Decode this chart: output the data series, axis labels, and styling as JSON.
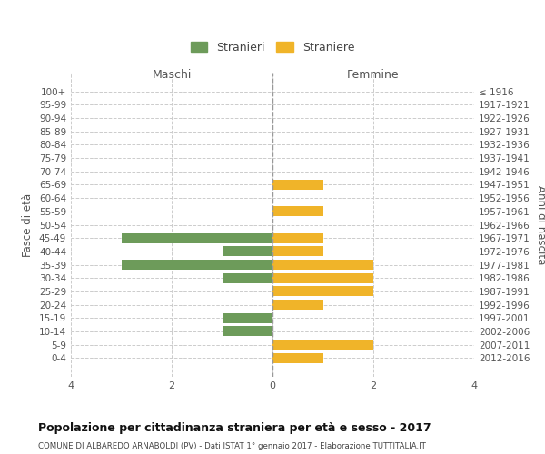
{
  "age_groups": [
    "100+",
    "95-99",
    "90-94",
    "85-89",
    "80-84",
    "75-79",
    "70-74",
    "65-69",
    "60-64",
    "55-59",
    "50-54",
    "45-49",
    "40-44",
    "35-39",
    "30-34",
    "25-29",
    "20-24",
    "15-19",
    "10-14",
    "5-9",
    "0-4"
  ],
  "birth_years": [
    "≤ 1916",
    "1917-1921",
    "1922-1926",
    "1927-1931",
    "1932-1936",
    "1937-1941",
    "1942-1946",
    "1947-1951",
    "1952-1956",
    "1957-1961",
    "1962-1966",
    "1967-1971",
    "1972-1976",
    "1977-1981",
    "1982-1986",
    "1987-1991",
    "1992-1996",
    "1997-2001",
    "2002-2006",
    "2007-2011",
    "2012-2016"
  ],
  "maschi": [
    0,
    0,
    0,
    0,
    0,
    0,
    0,
    0,
    0,
    0,
    0,
    3,
    1,
    3,
    1,
    0,
    0,
    1,
    1,
    0,
    0
  ],
  "femmine": [
    0,
    0,
    0,
    0,
    0,
    0,
    0,
    1,
    0,
    1,
    0,
    1,
    1,
    2,
    2,
    2,
    1,
    0,
    0,
    2,
    1
  ],
  "color_maschi": "#6d9b5a",
  "color_femmine": "#f0b429",
  "title": "Popolazione per cittadinanza straniera per età e sesso - 2017",
  "subtitle": "COMUNE DI ALBAREDO ARNABOLDI (PV) - Dati ISTAT 1° gennaio 2017 - Elaborazione TUTTITALIA.IT",
  "xlabel_left": "Maschi",
  "xlabel_right": "Femmine",
  "ylabel_left": "Fasce di età",
  "ylabel_right": "Anni di nascita",
  "legend_maschi": "Stranieri",
  "legend_femmine": "Straniere",
  "xlim": 4,
  "background_color": "#ffffff",
  "grid_color": "#cccccc",
  "bar_height": 0.75
}
